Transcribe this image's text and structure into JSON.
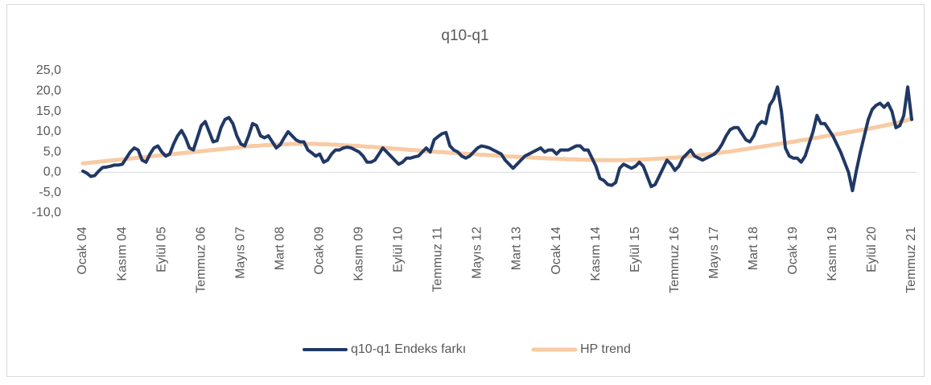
{
  "chart_data": {
    "type": "line",
    "title": "q10-q1",
    "legend": "bottom",
    "grid": false,
    "ylim": [
      -10,
      25
    ],
    "yticks": [
      {
        "value": 25,
        "label": "25,0"
      },
      {
        "value": 20,
        "label": "20,0"
      },
      {
        "value": 15,
        "label": "15,0"
      },
      {
        "value": 10,
        "label": "10,0"
      },
      {
        "value": 5,
        "label": "5,0"
      },
      {
        "value": 0,
        "label": "0,0"
      },
      {
        "value": -5,
        "label": "-5,0"
      },
      {
        "value": -10,
        "label": "-10,0"
      }
    ],
    "categories": [
      "Ocak 04",
      null,
      null,
      null,
      null,
      null,
      null,
      null,
      null,
      null,
      "Kasım 04",
      null,
      null,
      null,
      null,
      null,
      null,
      null,
      null,
      null,
      "Eylül 05",
      null,
      null,
      null,
      null,
      null,
      null,
      null,
      null,
      null,
      "Temmuz 06",
      null,
      null,
      null,
      null,
      null,
      null,
      null,
      null,
      null,
      "Mayıs 07",
      null,
      null,
      null,
      null,
      null,
      null,
      null,
      null,
      null,
      "Mart 08",
      null,
      null,
      null,
      null,
      null,
      null,
      null,
      null,
      null,
      "Ocak 09",
      null,
      null,
      null,
      null,
      null,
      null,
      null,
      null,
      null,
      "Kasım 09",
      null,
      null,
      null,
      null,
      null,
      null,
      null,
      null,
      null,
      "Eylül 10",
      null,
      null,
      null,
      null,
      null,
      null,
      null,
      null,
      null,
      "Temmuz 11",
      null,
      null,
      null,
      null,
      null,
      null,
      null,
      null,
      null,
      "Mayıs 12",
      null,
      null,
      null,
      null,
      null,
      null,
      null,
      null,
      null,
      "Mart 13",
      null,
      null,
      null,
      null,
      null,
      null,
      null,
      null,
      null,
      "Ocak 14",
      null,
      null,
      null,
      null,
      null,
      null,
      null,
      null,
      null,
      "Kasım 14",
      null,
      null,
      null,
      null,
      null,
      null,
      null,
      null,
      null,
      "Eylül 15",
      null,
      null,
      null,
      null,
      null,
      null,
      null,
      null,
      null,
      "Temmuz 16",
      null,
      null,
      null,
      null,
      null,
      null,
      null,
      null,
      null,
      "Mayıs 17",
      null,
      null,
      null,
      null,
      null,
      null,
      null,
      null,
      null,
      "Mart 18",
      null,
      null,
      null,
      null,
      null,
      null,
      null,
      null,
      null,
      "Ocak 19",
      null,
      null,
      null,
      null,
      null,
      null,
      null,
      null,
      null,
      "Kasım 19",
      null,
      null,
      null,
      null,
      null,
      null,
      null,
      null,
      null,
      "Eylül 20",
      null,
      null,
      null,
      null,
      null,
      null,
      null,
      null,
      null,
      "Temmuz 21"
    ],
    "series": [
      {
        "name": "q10-q1 Endeks farkı",
        "color": "#203864",
        "values": [
          0.3,
          -0.2,
          -1,
          -0.8,
          0.3,
          1.2,
          1.3,
          1.5,
          1.8,
          1.8,
          2.0,
          3.5,
          5,
          6,
          5.5,
          3,
          2.5,
          4.5,
          6,
          6.5,
          5,
          4,
          4.5,
          7,
          9,
          10.3,
          8.5,
          6,
          5.5,
          8.5,
          11.5,
          12.5,
          10,
          7.5,
          7.8,
          11,
          13,
          13.5,
          12,
          9,
          7,
          6.5,
          9,
          12,
          11.5,
          9,
          8.5,
          9,
          7.5,
          6,
          6.8,
          8.5,
          10,
          9,
          8,
          7.5,
          7.5,
          5.5,
          4.8,
          4,
          4.5,
          2.5,
          3,
          4.5,
          5.5,
          5.5,
          6,
          6.2,
          6,
          5.5,
          5,
          4,
          2.5,
          2.5,
          3,
          4.5,
          6,
          5,
          4,
          3,
          2,
          2.5,
          3.5,
          3.5,
          3.8,
          4,
          5,
          6,
          5,
          8,
          8.8,
          9.5,
          9.8,
          6.5,
          5.5,
          5,
          4,
          3.5,
          4,
          5,
          6,
          6.5,
          6.3,
          6,
          5.5,
          5,
          4.5,
          3,
          2,
          1,
          2,
          3,
          4,
          4.5,
          5,
          5.5,
          6,
          5,
          5.5,
          5.5,
          4.5,
          5.5,
          5.5,
          5.5,
          6,
          6.5,
          6.5,
          5.5,
          5.5,
          3.5,
          1.5,
          -1.5,
          -2,
          -3,
          -3.2,
          -2.5,
          1,
          2,
          1.5,
          1,
          1.5,
          2.5,
          1.5,
          -1,
          -3.5,
          -3,
          -1,
          1,
          3,
          2,
          0.5,
          1.5,
          3.5,
          4.5,
          5.5,
          4,
          3.5,
          3,
          3.5,
          4,
          4.5,
          5.5,
          7,
          9,
          10.5,
          11,
          11,
          9.5,
          8,
          7.5,
          9,
          11.5,
          12.5,
          12,
          16.5,
          18,
          21,
          15,
          6,
          4,
          3.5,
          3.5,
          2.5,
          4,
          7,
          10,
          14,
          12,
          12,
          10.5,
          9,
          7,
          5,
          2.5,
          0,
          -4.5,
          0.5,
          5,
          9,
          13,
          15.5,
          16.5,
          17,
          16,
          17,
          15,
          11,
          11.5,
          14,
          21,
          13
        ]
      },
      {
        "name": "HP trend",
        "color": "#f8cba4",
        "values": [
          2.2,
          2.3,
          2.4,
          2.5,
          2.6,
          2.7,
          2.8,
          2.9,
          3.0,
          3.1,
          3.2,
          3.3,
          3.4,
          3.5,
          3.6,
          3.7,
          3.8,
          3.9,
          4.0,
          4.1,
          4.2,
          4.3,
          4.4,
          4.5,
          4.6,
          4.7,
          4.8,
          4.9,
          5.0,
          5.1,
          5.2,
          5.3,
          5.4,
          5.5,
          5.6,
          5.7,
          5.8,
          5.9,
          6.0,
          6.1,
          6.2,
          6.3,
          6.4,
          6.5,
          6.5,
          6.6,
          6.7,
          6.7,
          6.8,
          6.8,
          6.9,
          6.9,
          6.9,
          7.0,
          7.0,
          7.0,
          7.0,
          7.0,
          7.0,
          7.0,
          6.9,
          6.9,
          6.9,
          6.8,
          6.8,
          6.7,
          6.7,
          6.6,
          6.6,
          6.5,
          6.5,
          6.4,
          6.3,
          6.3,
          6.2,
          6.1,
          6.1,
          6.0,
          5.9,
          5.8,
          5.8,
          5.7,
          5.6,
          5.5,
          5.5,
          5.4,
          5.3,
          5.2,
          5.2,
          5.1,
          5.0,
          5.0,
          4.9,
          4.8,
          4.8,
          4.7,
          4.6,
          4.6,
          4.5,
          4.5,
          4.4,
          4.3,
          4.3,
          4.2,
          4.2,
          4.1,
          4.0,
          4.0,
          3.9,
          3.9,
          3.8,
          3.8,
          3.7,
          3.7,
          3.6,
          3.6,
          3.5,
          3.5,
          3.4,
          3.4,
          3.4,
          3.3,
          3.3,
          3.2,
          3.2,
          3.2,
          3.1,
          3.1,
          3.1,
          3.0,
          3.0,
          3.0,
          3.0,
          3.0,
          3.0,
          3.0,
          3.0,
          3.0,
          3.0,
          3.1,
          3.1,
          3.1,
          3.2,
          3.2,
          3.3,
          3.3,
          3.4,
          3.4,
          3.5,
          3.6,
          3.6,
          3.7,
          3.8,
          3.9,
          4.0,
          4.1,
          4.2,
          4.3,
          4.4,
          4.5,
          4.6,
          4.7,
          4.9,
          5.0,
          5.1,
          5.3,
          5.4,
          5.6,
          5.7,
          5.9,
          6.0,
          6.2,
          6.3,
          6.5,
          6.6,
          6.8,
          6.9,
          7.1,
          7.2,
          7.4,
          7.5,
          7.7,
          7.9,
          8.0,
          8.2,
          8.4,
          8.5,
          8.7,
          8.9,
          9.0,
          9.2,
          9.4,
          9.5,
          9.7,
          9.9,
          10.0,
          10.2,
          10.4,
          10.5,
          10.7,
          10.9,
          11.1,
          11.3,
          11.5,
          11.7,
          11.9,
          12.1,
          12.4,
          12.6,
          12.9,
          13.2
        ]
      }
    ]
  }
}
